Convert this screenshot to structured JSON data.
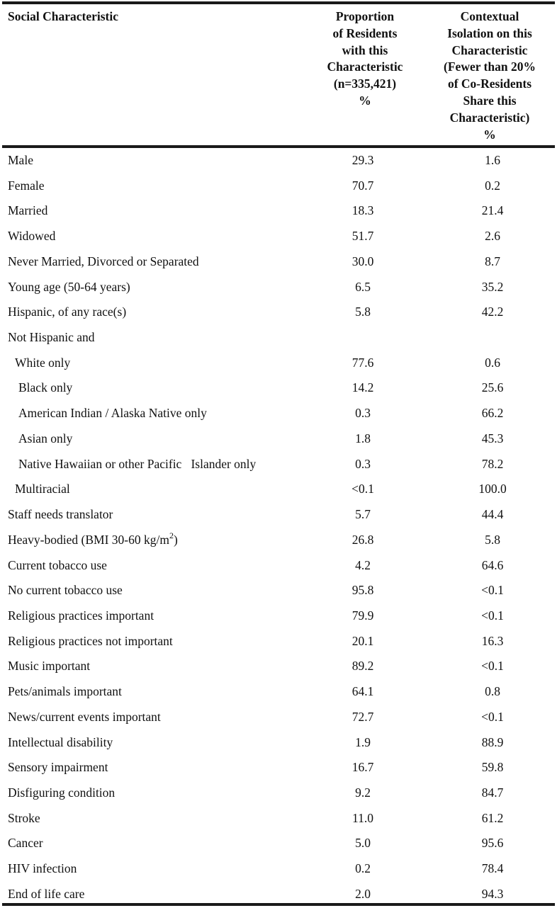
{
  "table": {
    "headers": {
      "characteristic": [
        "Social Characteristic"
      ],
      "proportion": [
        "Proportion",
        "of Residents",
        "with this",
        "Characteristic",
        "(n=335,421)",
        "%"
      ],
      "isolation": [
        "Contextual",
        "Isolation on this",
        "Characteristic",
        "(Fewer than 20%",
        "of Co-Residents",
        "Share this",
        "Characteristic)",
        "%"
      ]
    },
    "rows": [
      {
        "label": "Male",
        "proportion": "29.3",
        "isolation": "1.6",
        "indent": 0
      },
      {
        "label": "Female",
        "proportion": "70.7",
        "isolation": "0.2",
        "indent": 0
      },
      {
        "label": "Married",
        "proportion": "18.3",
        "isolation": "21.4",
        "indent": 0
      },
      {
        "label": "Widowed",
        "proportion": "51.7",
        "isolation": "2.6",
        "indent": 0
      },
      {
        "label": "Never Married, Divorced or Separated",
        "proportion": "30.0",
        "isolation": "8.7",
        "indent": 0
      },
      {
        "label": "Young age (50-64 years)",
        "proportion": "6.5",
        "isolation": "35.2",
        "indent": 0
      },
      {
        "label": "Hispanic, of any race(s)",
        "proportion": "5.8",
        "isolation": "42.2",
        "indent": 0
      },
      {
        "label": "Not Hispanic and",
        "proportion": "",
        "isolation": "",
        "indent": 0
      },
      {
        "label": "White only",
        "proportion": "77.6",
        "isolation": "0.6",
        "indent": 1
      },
      {
        "label": "Black only",
        "proportion": "14.2",
        "isolation": "25.6",
        "indent": 2
      },
      {
        "label": "American Indian / Alaska Native only",
        "proportion": "0.3",
        "isolation": "66.2",
        "indent": 2
      },
      {
        "label": "Asian only",
        "proportion": "1.8",
        "isolation": "45.3",
        "indent": 2
      },
      {
        "label": "Native Hawaiian or other Pacific   Islander only",
        "proportion": "0.3",
        "isolation": "78.2",
        "indent": 2
      },
      {
        "label": "Multiracial",
        "proportion": "<0.1",
        "isolation": "100.0",
        "indent": 1
      },
      {
        "label": "Staff needs translator",
        "proportion": "5.7",
        "isolation": "44.4",
        "indent": 0
      },
      {
        "label": "Heavy-bodied (BMI 30-60 kg/m",
        "sup": "2",
        "label_suffix": ")",
        "proportion": "26.8",
        "isolation": "5.8",
        "indent": 0
      },
      {
        "label": "Current tobacco use",
        "proportion": "4.2",
        "isolation": "64.6",
        "indent": 0
      },
      {
        "label": "No current tobacco use",
        "proportion": "95.8",
        "isolation": "<0.1",
        "indent": 0
      },
      {
        "label": "Religious practices important",
        "proportion": "79.9",
        "isolation": "<0.1",
        "indent": 0
      },
      {
        "label": "Religious practices not important",
        "proportion": "20.1",
        "isolation": "16.3",
        "indent": 0
      },
      {
        "label": "Music important",
        "proportion": "89.2",
        "isolation": "<0.1",
        "indent": 0
      },
      {
        "label": "Pets/animals important",
        "proportion": "64.1",
        "isolation": "0.8",
        "indent": 0
      },
      {
        "label": "News/current events important",
        "proportion": "72.7",
        "isolation": "<0.1",
        "indent": 0
      },
      {
        "label": "Intellectual disability",
        "proportion": "1.9",
        "isolation": "88.9",
        "indent": 0
      },
      {
        "label": "Sensory impairment",
        "proportion": "16.7",
        "isolation": "59.8",
        "indent": 0
      },
      {
        "label": "Disfiguring condition",
        "proportion": "9.2",
        "isolation": "84.7",
        "indent": 0
      },
      {
        "label": "Stroke",
        "proportion": "11.0",
        "isolation": "61.2",
        "indent": 0
      },
      {
        "label": "Cancer",
        "proportion": "5.0",
        "isolation": "95.6",
        "indent": 0
      },
      {
        "label": "HIV infection",
        "proportion": "0.2",
        "isolation": "78.4",
        "indent": 0
      },
      {
        "label": "End of life care",
        "proportion": "2.0",
        "isolation": "94.3",
        "indent": 0
      }
    ]
  }
}
